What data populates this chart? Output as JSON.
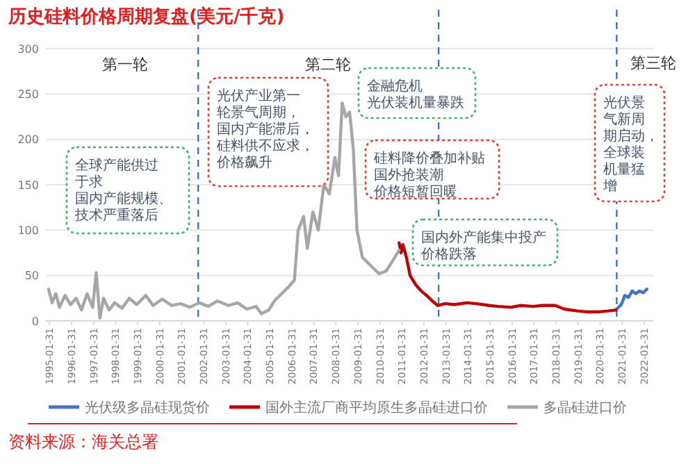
{
  "chart_data": {
    "type": "line",
    "title": "历史硅料价格周期复盘(美元/千克)",
    "ylim": [
      0,
      300
    ],
    "yticks": [
      0,
      50,
      100,
      150,
      200,
      250,
      300
    ],
    "xlim": [
      "1994-12-01",
      "2022-06-30"
    ],
    "xticks": [
      "1995-01-31",
      "1996-01-31",
      "1997-01-31",
      "1998-01-31",
      "1999-01-31",
      "2000-01-31",
      "2001-01-31",
      "2002-01-31",
      "2003-01-31",
      "2004-01-31",
      "2005-01-31",
      "2006-01-31",
      "2007-01-31",
      "2008-01-31",
      "2009-01-31",
      "2010-01-31",
      "2011-01-31",
      "2012-01-31",
      "2013-01-31",
      "2014-01-31",
      "2015-01-31",
      "2016-01-31",
      "2017-01-31",
      "2018-01-31",
      "2019-01-31",
      "2020-01-31",
      "2021-01-31",
      "2022-01-31"
    ],
    "grid": "y",
    "legend": "bottom",
    "series": [
      {
        "name": "光伏级多晶硅现货价",
        "color": "#4472c4",
        "x": [
          "2020-10",
          "2021-01",
          "2021-03",
          "2021-05",
          "2021-07",
          "2021-09",
          "2021-11",
          "2022-01",
          "2022-03"
        ],
        "values": [
          12,
          18,
          28,
          26,
          33,
          30,
          33,
          31,
          35
        ]
      },
      {
        "name": "国外主流厂商平均原生多晶硅进口价",
        "color": "#c00000",
        "x": [
          "2010-12",
          "2011-01",
          "2011-02",
          "2011-04",
          "2011-06",
          "2011-09",
          "2011-12",
          "2012-03",
          "2012-06",
          "2012-09",
          "2013-01",
          "2013-06",
          "2014-01",
          "2014-06",
          "2015-01",
          "2015-06",
          "2016-01",
          "2016-06",
          "2017-01",
          "2017-06",
          "2018-01",
          "2018-06",
          "2019-01",
          "2019-06",
          "2020-01",
          "2020-06",
          "2020-10"
        ],
        "values": [
          86,
          75,
          84,
          70,
          50,
          40,
          33,
          28,
          22,
          17,
          19,
          18,
          20,
          19,
          17,
          16,
          15,
          17,
          16,
          17,
          17,
          13,
          11,
          10,
          10,
          11,
          12
        ]
      },
      {
        "name": "多晶硅进口价",
        "color": "#a6a6a6",
        "x": [
          "1995-01",
          "1995-03",
          "1995-05",
          "1995-07",
          "1995-10",
          "1996-01",
          "1996-04",
          "1996-07",
          "1996-10",
          "1997-01",
          "1997-03",
          "1997-05",
          "1997-07",
          "1997-10",
          "1998-01",
          "1998-05",
          "1998-09",
          "1999-01",
          "1999-06",
          "1999-10",
          "2000-03",
          "2000-08",
          "2001-01",
          "2001-06",
          "2001-11",
          "2002-04",
          "2002-09",
          "2003-03",
          "2003-08",
          "2004-01",
          "2004-06",
          "2004-09",
          "2005-01",
          "2005-04",
          "2005-08",
          "2005-12",
          "2006-03",
          "2006-05",
          "2006-08",
          "2006-10",
          "2007-01",
          "2007-04",
          "2007-07",
          "2007-10",
          "2008-01",
          "2008-03",
          "2008-05",
          "2008-07",
          "2008-09",
          "2008-11",
          "2009-01",
          "2009-04",
          "2009-08",
          "2010-01",
          "2010-05",
          "2010-09",
          "2010-12"
        ],
        "values": [
          35,
          20,
          30,
          15,
          28,
          18,
          25,
          12,
          30,
          15,
          53,
          3,
          25,
          12,
          20,
          14,
          25,
          18,
          28,
          17,
          24,
          17,
          19,
          15,
          20,
          16,
          22,
          17,
          20,
          13,
          16,
          8,
          12,
          22,
          30,
          38,
          45,
          100,
          115,
          80,
          120,
          100,
          150,
          140,
          180,
          160,
          240,
          225,
          230,
          190,
          100,
          70,
          62,
          52,
          55,
          68,
          78
        ]
      }
    ],
    "ref_lines": [
      {
        "axis": "x",
        "value": "2001-10-31",
        "color": "#4a6fb5",
        "line_style": "dashed"
      },
      {
        "axis": "x",
        "value": "2012-09-30",
        "color": "#4a6fb5",
        "line_style": "dashed"
      },
      {
        "axis": "x",
        "value": "2020-10-31",
        "color": "#4a6fb5",
        "line_style": "dashed"
      }
    ],
    "annotations": [
      "第一轮",
      "第二轮",
      "第三轮",
      "全球产能供过于求",
      "国内产能规模、技术严重落后",
      "光伏产业第一轮景气周期，国内产能滞后，硅料供不应求，价格飙升",
      "金融危机",
      "光伏装机量暴跌",
      "硅料降价叠加补贴",
      "国外抢装潮",
      "价格短暂回暖",
      "国内外产能集中投产",
      "价格跌落",
      "光伏景气新周期启动，全球装机量猛增",
      "资料来源：海关总署"
    ]
  }
}
